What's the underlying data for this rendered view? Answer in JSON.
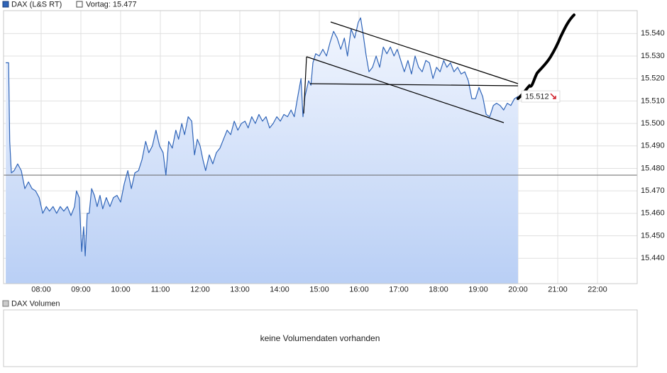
{
  "chart_data": {
    "type": "line",
    "series": [
      {
        "name": "DAX (L&S RT)",
        "color": "#2f64b8"
      }
    ],
    "x": [
      7.11,
      7.18,
      7.21,
      7.25,
      7.32,
      7.41,
      7.5,
      7.59,
      7.68,
      7.77,
      7.86,
      7.95,
      8.04,
      8.13,
      8.21,
      8.3,
      8.39,
      8.48,
      8.57,
      8.66,
      8.75,
      8.84,
      8.89,
      8.96,
      9.02,
      9.07,
      9.11,
      9.16,
      9.21,
      9.27,
      9.34,
      9.41,
      9.48,
      9.55,
      9.64,
      9.73,
      9.82,
      9.91,
      10.0,
      10.09,
      10.18,
      10.27,
      10.36,
      10.45,
      10.54,
      10.63,
      10.71,
      10.8,
      10.89,
      10.98,
      11.07,
      11.14,
      11.21,
      11.3,
      11.39,
      11.46,
      11.54,
      11.61,
      11.7,
      11.79,
      11.86,
      11.93,
      12.0,
      12.07,
      12.14,
      12.23,
      12.32,
      12.41,
      12.5,
      12.59,
      12.68,
      12.77,
      12.86,
      12.95,
      13.04,
      13.13,
      13.21,
      13.3,
      13.39,
      13.48,
      13.57,
      13.66,
      13.75,
      13.84,
      13.93,
      14.02,
      14.11,
      14.2,
      14.29,
      14.37,
      14.46,
      14.54,
      14.59,
      14.64,
      14.73,
      14.79,
      14.84,
      14.91,
      15.0,
      15.09,
      15.18,
      15.27,
      15.36,
      15.45,
      15.54,
      15.63,
      15.71,
      15.8,
      15.89,
      15.98,
      16.04,
      16.11,
      16.18,
      16.25,
      16.34,
      16.43,
      16.52,
      16.61,
      16.7,
      16.79,
      16.88,
      16.96,
      17.05,
      17.14,
      17.23,
      17.32,
      17.41,
      17.5,
      17.59,
      17.68,
      17.77,
      17.86,
      17.95,
      18.04,
      18.13,
      18.21,
      18.3,
      18.39,
      18.48,
      18.57,
      18.66,
      18.75,
      18.84,
      18.93,
      19.02,
      19.11,
      19.2,
      19.29,
      19.38,
      19.46,
      19.55,
      19.64,
      19.73,
      19.82,
      19.91,
      20.0
    ],
    "values": [
      15.527,
      15.527,
      15.492,
      15.478,
      15.479,
      15.482,
      15.479,
      15.471,
      15.474,
      15.471,
      15.47,
      15.467,
      15.46,
      15.463,
      15.461,
      15.463,
      15.46,
      15.463,
      15.461,
      15.463,
      15.459,
      15.463,
      15.47,
      15.467,
      15.443,
      15.454,
      15.441,
      15.46,
      15.46,
      15.471,
      15.468,
      15.463,
      15.468,
      15.462,
      15.467,
      15.463,
      15.467,
      15.468,
      15.465,
      15.473,
      15.479,
      15.471,
      15.478,
      15.479,
      15.484,
      15.492,
      15.487,
      15.49,
      15.497,
      15.49,
      15.487,
      15.477,
      15.492,
      15.489,
      15.497,
      15.493,
      15.5,
      15.495,
      15.503,
      15.501,
      15.486,
      15.493,
      15.49,
      15.484,
      15.479,
      15.486,
      15.482,
      15.487,
      15.489,
      15.493,
      15.497,
      15.495,
      15.501,
      15.497,
      15.5,
      15.501,
      15.498,
      15.503,
      15.5,
      15.504,
      15.501,
      15.503,
      15.498,
      15.5,
      15.503,
      15.501,
      15.504,
      15.503,
      15.506,
      15.503,
      15.512,
      15.52,
      15.503,
      15.512,
      15.519,
      15.517,
      15.527,
      15.531,
      15.53,
      15.533,
      15.53,
      15.536,
      15.541,
      15.538,
      15.533,
      15.538,
      15.53,
      15.542,
      15.538,
      15.545,
      15.547,
      15.539,
      15.53,
      15.523,
      15.525,
      15.53,
      15.525,
      15.534,
      15.531,
      15.534,
      15.53,
      15.533,
      15.528,
      15.523,
      15.528,
      15.522,
      15.53,
      15.525,
      15.523,
      15.528,
      15.527,
      15.52,
      15.525,
      15.523,
      15.528,
      15.525,
      15.527,
      15.523,
      15.525,
      15.522,
      15.523,
      15.519,
      15.511,
      15.511,
      15.516,
      15.512,
      15.504,
      15.503,
      15.508,
      15.509,
      15.508,
      15.506,
      15.509,
      15.508,
      15.511,
      15.512
    ],
    "reference": {
      "label": "Vortag:",
      "value": 15.477
    },
    "last_value": 15.512,
    "xlim": [
      7.054,
      23.0
    ],
    "xticks": [
      {
        "value": 8,
        "label": "08:00"
      },
      {
        "value": 9,
        "label": "09:00"
      },
      {
        "value": 10,
        "label": "10:00"
      },
      {
        "value": 11,
        "label": "11:00"
      },
      {
        "value": 12,
        "label": "12:00"
      },
      {
        "value": 13,
        "label": "13:00"
      },
      {
        "value": 14,
        "label": "14:00"
      },
      {
        "value": 15,
        "label": "15:00"
      },
      {
        "value": 16,
        "label": "16:00"
      },
      {
        "value": 17,
        "label": "17:00"
      },
      {
        "value": 18,
        "label": "18:00"
      },
      {
        "value": 19,
        "label": "19:00"
      },
      {
        "value": 20,
        "label": "20:00"
      },
      {
        "value": 21,
        "label": "21:00"
      },
      {
        "value": 22,
        "label": "22:00"
      }
    ],
    "ylim": [
      15.4287,
      15.5502
    ],
    "yticks": [
      {
        "value": 15.44,
        "label": "15.440"
      },
      {
        "value": 15.45,
        "label": "15.450"
      },
      {
        "value": 15.46,
        "label": "15.460"
      },
      {
        "value": 15.47,
        "label": "15.470"
      },
      {
        "value": 15.48,
        "label": "15.480"
      },
      {
        "value": 15.49,
        "label": "15.490"
      },
      {
        "value": 15.5,
        "label": "15.500"
      },
      {
        "value": 15.51,
        "label": "15.510"
      },
      {
        "value": 15.52,
        "label": "15.520"
      },
      {
        "value": 15.53,
        "label": "15.530"
      },
      {
        "value": 15.54,
        "label": "15.540"
      }
    ],
    "grid": true
  },
  "volume": {
    "legend": "DAX Volumen",
    "message": "keine Volumendaten vorhanden"
  }
}
